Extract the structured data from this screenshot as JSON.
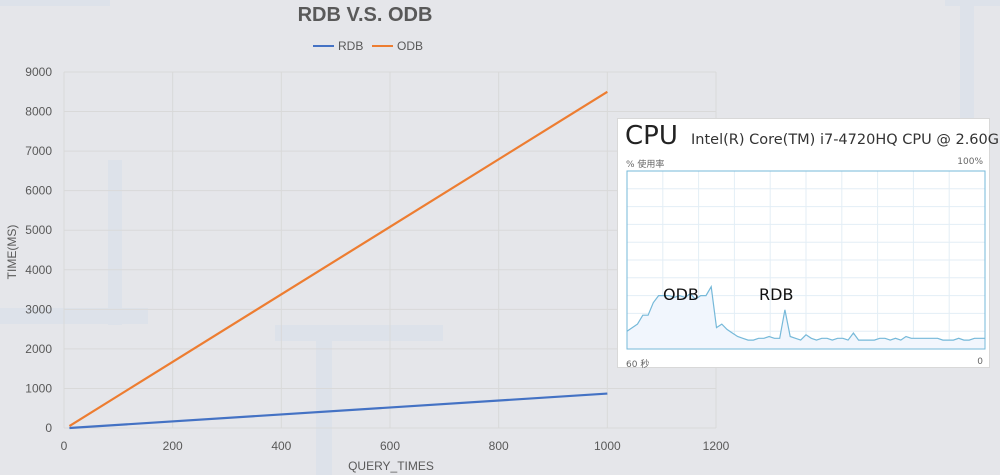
{
  "chart_data": {
    "type": "line",
    "title": "RDB V.S. ODB",
    "xlabel": "QUERY_TIMES",
    "ylabel": "TIME(MS)",
    "xlim": [
      0,
      1200
    ],
    "ylim": [
      0,
      9000
    ],
    "xticks": [
      0,
      200,
      400,
      600,
      800,
      1000,
      1200
    ],
    "yticks": [
      0,
      1000,
      2000,
      3000,
      4000,
      5000,
      6000,
      7000,
      8000,
      9000
    ],
    "grid": true,
    "legend_position": "top",
    "series": [
      {
        "name": "RDB",
        "color": "#4472c4",
        "x": [
          10,
          1000
        ],
        "y": [
          0,
          870
        ]
      },
      {
        "name": "ODB",
        "color": "#ed7d31",
        "x": [
          10,
          1000
        ],
        "y": [
          50,
          8500
        ]
      }
    ]
  },
  "cpu_panel": {
    "title": "CPU",
    "processor": "Intel(R) Core(TM) i7-4720HQ CPU @ 2.60G...",
    "utilization_label": "% 使用率",
    "max_label": "100%",
    "time_label": "60 秒",
    "zero_label": "0",
    "annotation_odb": "ODB",
    "annotation_rdb": "RDB",
    "line_color": "#76b9d9",
    "fill_color": "#f1f6fd",
    "usage_percent": [
      10,
      12,
      14,
      19,
      19,
      26,
      30,
      30,
      30,
      29,
      30,
      29,
      31,
      28,
      30,
      30,
      35,
      12,
      14,
      11,
      9,
      7,
      6,
      5,
      5,
      6,
      6,
      7,
      6,
      6,
      22,
      7,
      6,
      5,
      8,
      6,
      5,
      6,
      6,
      5,
      6,
      6,
      5,
      9,
      5,
      5,
      5,
      5,
      6,
      6,
      5,
      6,
      5,
      7,
      6,
      6,
      6,
      6,
      6,
      6,
      5,
      5,
      5,
      6,
      5,
      5,
      6,
      6,
      6
    ]
  }
}
